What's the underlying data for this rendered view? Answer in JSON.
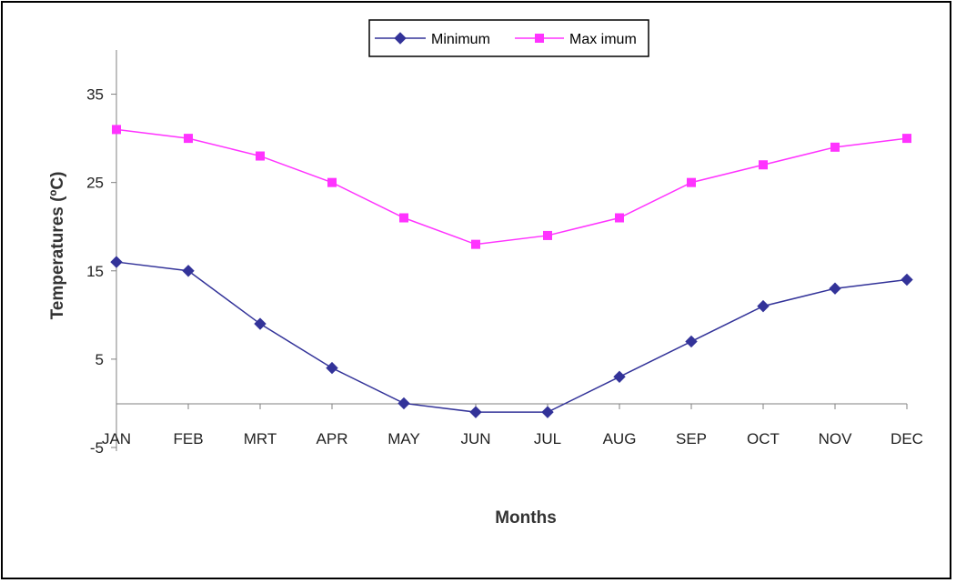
{
  "chart_data": {
    "type": "line",
    "categories": [
      "JAN",
      "FEB",
      "MRT",
      "APR",
      "MAY",
      "JUN",
      "JUL",
      "AUG",
      "SEP",
      "OCT",
      "NOV",
      "DEC"
    ],
    "series": [
      {
        "name": "Minimum",
        "color": "#333399",
        "marker": "diamond",
        "values": [
          16,
          15,
          9,
          4,
          0,
          -1,
          -1,
          3,
          7,
          11,
          13,
          14
        ]
      },
      {
        "name": "Max imum",
        "color": "#ff33ff",
        "marker": "square",
        "values": [
          31,
          30,
          28,
          25,
          21,
          18,
          19,
          21,
          25,
          27,
          29,
          30
        ]
      }
    ],
    "xlabel": "Months",
    "ylabel": "Temperatures (ºC)",
    "ylim": [
      -5,
      40
    ],
    "yticks": [
      "35",
      "25",
      "15",
      "5",
      "-5"
    ],
    "legend_position": "top-center",
    "grid": false
  }
}
